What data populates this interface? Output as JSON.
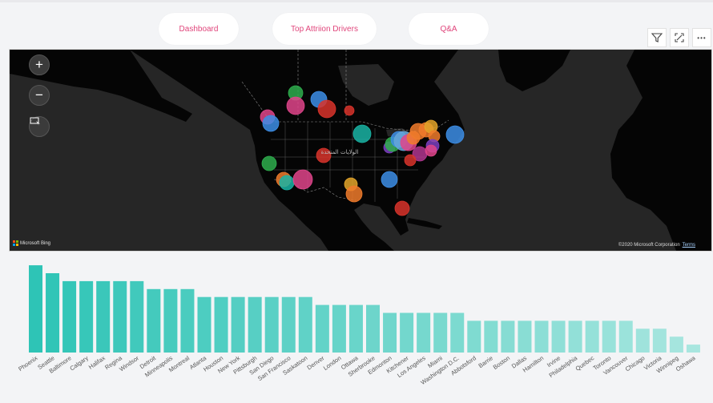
{
  "nav": {
    "dashboard_label": "Dashboard",
    "drivers_label": "Top Attriion Drivers",
    "qa_label": "Q&A"
  },
  "visual_tools": {
    "filter_icon": "funnel-icon",
    "focus_icon": "focus-mode-icon",
    "more_icon": "ellipsis-icon",
    "more_glyph": "•••"
  },
  "map": {
    "zoom_in_glyph": "+",
    "zoom_out_glyph": "−",
    "select_icon": "lasso-select-icon",
    "attribution": "Microsoft Bing",
    "copyright": "©2020 Microsoft Corporation",
    "terms": "Terms",
    "country_label": "الولايات المتحدة",
    "bubble_colors": [
      "#e0458b",
      "#3d8ee6",
      "#1ab4a5",
      "#d9342b",
      "#2fae4e",
      "#f07b2c",
      "#7b3fbf",
      "#b0368f",
      "#e3a52a",
      "#67a7d9"
    ]
  },
  "chart_data": {
    "type": "bar",
    "categories": [
      "Phoenix",
      "Seattle",
      "Baltimore",
      "Calgary",
      "Halifax",
      "Regina",
      "Windsor",
      "Detroit",
      "Minneapolis",
      "Montreal",
      "Atlanta",
      "Houston",
      "New York",
      "Pittsburgh",
      "San Diego",
      "San Francisco",
      "Saskatoon",
      "Denver",
      "London",
      "Ottawa",
      "Sherbrooke",
      "Edmonton",
      "Kitchener",
      "Los Angeles",
      "Miami",
      "Washington D.C.",
      "Abbotsford",
      "Barrie",
      "Boston",
      "Dallas",
      "Hamilton",
      "Irvine",
      "Philadelphia",
      "Quebec",
      "Toronto",
      "Vancouver",
      "Chicago",
      "Victoria",
      "Winnipeg",
      "Oshawa"
    ],
    "values": [
      11,
      10,
      9,
      9,
      9,
      9,
      9,
      8,
      8,
      8,
      7,
      7,
      7,
      7,
      7,
      7,
      7,
      6,
      6,
      6,
      6,
      5,
      5,
      5,
      5,
      5,
      4,
      4,
      4,
      4,
      4,
      4,
      4,
      4,
      4,
      4,
      3,
      3,
      2,
      1
    ],
    "ylim": [
      0,
      12
    ],
    "color_start": "#2ec4b6",
    "color_end": "#a8e6df"
  }
}
